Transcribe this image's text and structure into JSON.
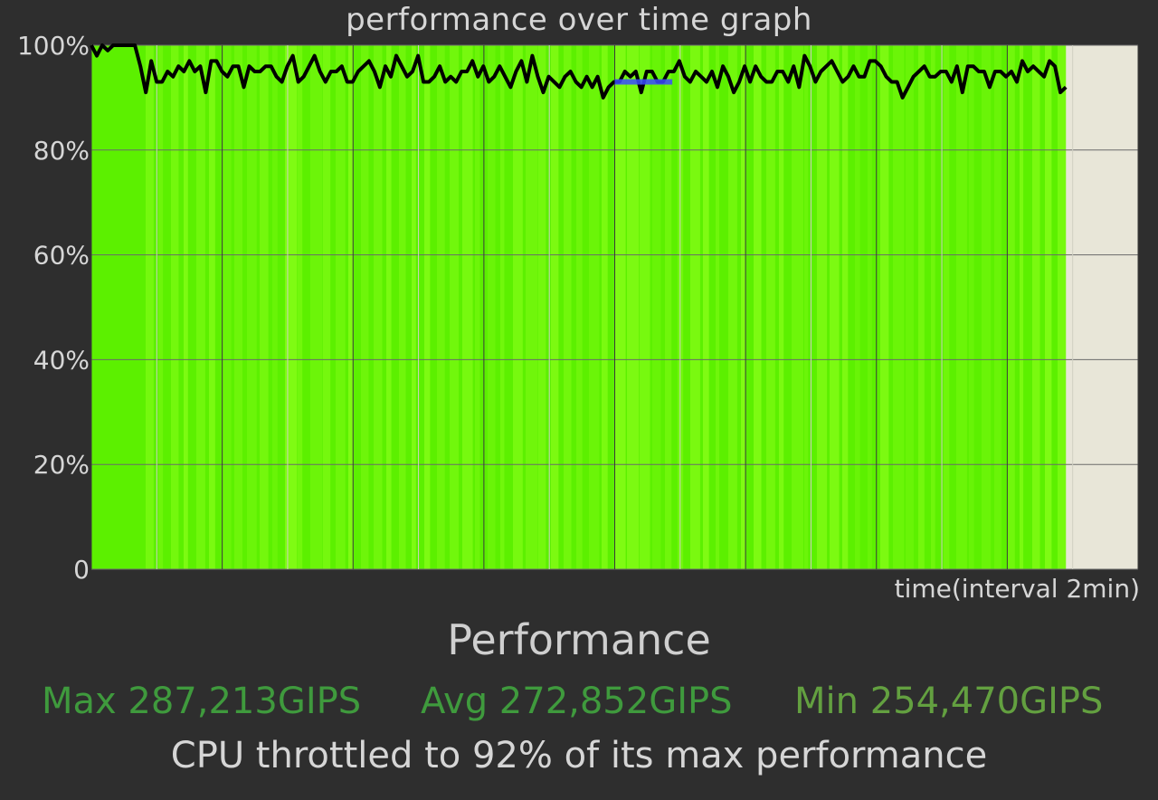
{
  "chart_data": {
    "type": "area",
    "title": "performance over time graph",
    "xlabel": "time(interval 2min)",
    "ylabel": "",
    "ylim": [
      0,
      100
    ],
    "y_ticks": [
      "100%",
      "80%",
      "60%",
      "40%",
      "20%",
      "0"
    ],
    "x_interval_count": 16,
    "grid": true,
    "series": [
      {
        "values": [
          100,
          98,
          100,
          99,
          100,
          100,
          100,
          100,
          100,
          96,
          91,
          97,
          93,
          93,
          95,
          94,
          96,
          95,
          97,
          95,
          96,
          91,
          97,
          97,
          95,
          94,
          96,
          96,
          92,
          96,
          95,
          95,
          96,
          96,
          94,
          93,
          96,
          98,
          93,
          94,
          96,
          98,
          95,
          93,
          95,
          95,
          96,
          93,
          93,
          95,
          96,
          97,
          95,
          92,
          96,
          94,
          98,
          96,
          94,
          95,
          98,
          93,
          93,
          94,
          96,
          93,
          94,
          93,
          95,
          95,
          97,
          94,
          96,
          93,
          94,
          96,
          94,
          92,
          95,
          97,
          93,
          98,
          94,
          91,
          94,
          93,
          92,
          94,
          95,
          93,
          92,
          94,
          92,
          94,
          90,
          92,
          93,
          93,
          95,
          94,
          95,
          91,
          95,
          95,
          93,
          93,
          95,
          95,
          97,
          94,
          93,
          95,
          94,
          93,
          95,
          92,
          96,
          94,
          91,
          93,
          96,
          93,
          96,
          94,
          93,
          93,
          95,
          95,
          93,
          96,
          92,
          98,
          96,
          93,
          95,
          96,
          97,
          95,
          93,
          94,
          96,
          94,
          94,
          97,
          97,
          96,
          94,
          93,
          93,
          90,
          92,
          94,
          95,
          96,
          94,
          94,
          95,
          95,
          93,
          96,
          91,
          96,
          96,
          95,
          95,
          92,
          95,
          95,
          94,
          95,
          93,
          97,
          95,
          96,
          95,
          94,
          97,
          96,
          91,
          92
        ],
        "color": "#000000"
      }
    ],
    "fill_color": "#5cf000",
    "fill_end_fraction": 0.931,
    "avg_marker": {
      "value": 93,
      "start_fraction": 0.5,
      "end_fraction": 0.555,
      "color": "#3a4cff"
    }
  },
  "performance": {
    "title": "Performance",
    "max": "Max 287,213GIPS",
    "avg": "Avg 272,852GIPS",
    "min": "Min 254,470GIPS",
    "throttle_text": "CPU throttled to 92% of its max performance",
    "stat_color": "#3f9a3d",
    "min_color": "#63a040"
  }
}
